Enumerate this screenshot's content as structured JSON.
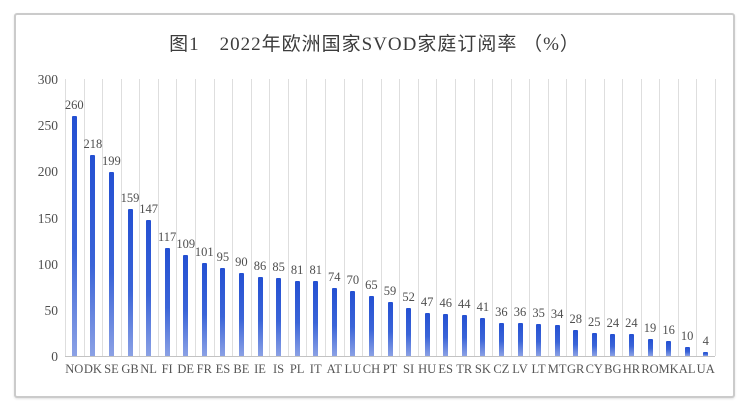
{
  "figure": {
    "title": "图1　2022年欧洲国家SVOD家庭订阅率 （%）"
  },
  "chart_data": {
    "type": "bar",
    "title": "图1　2022年欧洲国家SVOD家庭订阅率 （%）",
    "categories": [
      "NO",
      "DK",
      "SE",
      "GB",
      "NL",
      "FI",
      "DE",
      "FR",
      "ES",
      "BE",
      "IE",
      "IS",
      "PL",
      "IT",
      "AT",
      "LU",
      "CH",
      "PT",
      "SI",
      "HU",
      "ES",
      "TR",
      "SK",
      "CZ",
      "LV",
      "LT",
      "MT",
      "GR",
      "CY",
      "BG",
      "HR",
      "RO",
      "MK",
      "AL",
      "UA"
    ],
    "values": [
      260,
      218,
      199,
      159,
      147,
      117,
      109,
      101,
      95,
      90,
      86,
      85,
      81,
      81,
      74,
      70,
      65,
      59,
      52,
      47,
      46,
      44,
      41,
      36,
      36,
      35,
      34,
      28,
      25,
      24,
      24,
      19,
      16,
      10,
      4
    ],
    "data_labels": [
      260,
      218,
      199,
      159,
      147,
      117,
      109,
      101,
      95,
      90,
      86,
      85,
      81,
      81,
      74,
      70,
      65,
      59,
      52,
      47,
      46,
      44,
      41,
      36,
      36,
      35,
      34,
      28,
      25,
      24,
      24,
      19,
      16,
      10,
      4
    ],
    "xlabel": "",
    "ylabel": "",
    "ylim": [
      0,
      300
    ],
    "yticks": [
      0,
      50,
      100,
      150,
      200,
      250,
      300
    ],
    "grid": "vertical-only",
    "legend": "none",
    "colors": {
      "bar_top": "#2450d2",
      "bar_bottom": "#8ba1e5",
      "gridline": "#dedede",
      "axis_line": "#c3c3c3",
      "label_text": "#4f4f4f",
      "title_text": "#3c3c3c",
      "card_border": "#cbcbcb"
    }
  }
}
